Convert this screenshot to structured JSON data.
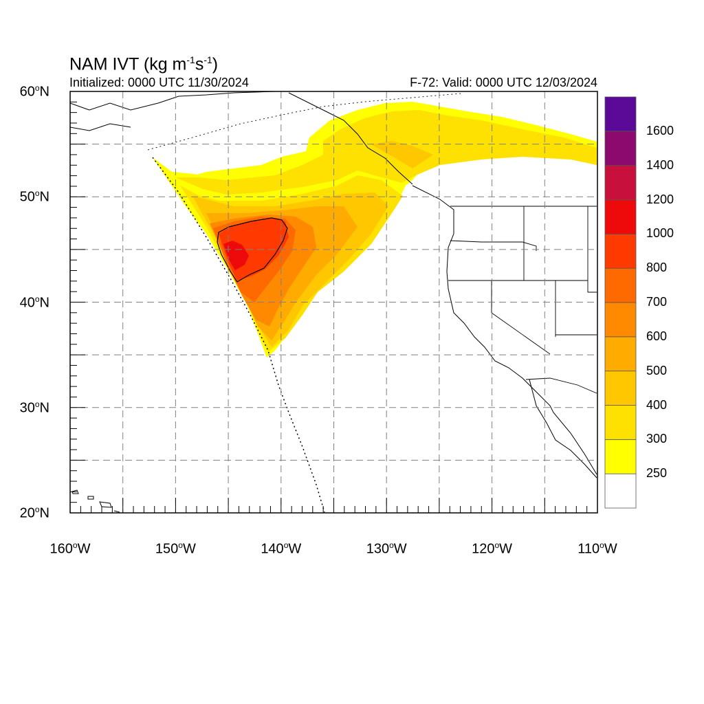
{
  "header": {
    "title_main": "NAM IVT (kg m",
    "title_exp1": "-1",
    "title_mid": "s",
    "title_exp2": "-1",
    "title_end": ")",
    "initialized": "Initialized: 0000 UTC 11/30/2024",
    "valid": "F-72: Valid: 0000 UTC 12/03/2024"
  },
  "axes": {
    "lat_labels": [
      {
        "num": "60",
        "hemi": "N"
      },
      {
        "num": "50",
        "hemi": "N"
      },
      {
        "num": "40",
        "hemi": "N"
      },
      {
        "num": "30",
        "hemi": "N"
      },
      {
        "num": "20",
        "hemi": "N"
      }
    ],
    "lon_labels": [
      {
        "num": "160",
        "hemi": "W"
      },
      {
        "num": "150",
        "hemi": "W"
      },
      {
        "num": "140",
        "hemi": "W"
      },
      {
        "num": "130",
        "hemi": "W"
      },
      {
        "num": "120",
        "hemi": "W"
      },
      {
        "num": "110",
        "hemi": "W"
      }
    ],
    "lat_range": [
      20,
      60
    ],
    "lon_range": [
      -160,
      -110
    ],
    "grid": "dashed every 5 degrees"
  },
  "colorbar": {
    "labels": [
      "1600",
      "1400",
      "1200",
      "1000",
      "800",
      "700",
      "600",
      "500",
      "400",
      "300",
      "250"
    ],
    "colors": [
      "#ffffff",
      "#ffff00",
      "#ffe100",
      "#ffc700",
      "#ffab00",
      "#ff8a00",
      "#ff6a00",
      "#ff3a00",
      "#ee0a0a",
      "#c8103c",
      "#8c0a6e",
      "#5a0a96"
    ]
  },
  "chart_data": {
    "type": "heatmap",
    "variable": "IVT",
    "units": "kg m-1 s-1",
    "levels": [
      250,
      300,
      400,
      500,
      600,
      700,
      800,
      1000,
      1200,
      1400,
      1600
    ],
    "xlim": [
      -160,
      -110
    ],
    "ylim": [
      20,
      60
    ],
    "features": [
      {
        "region": "core maximum",
        "center_lon": -143.5,
        "center_lat": 45.5,
        "level": 1000
      },
      {
        "region": "plume axis toward coast",
        "from_lon": -145,
        "from_lat": 43,
        "to_lon": -128,
        "to_lat": 54,
        "level": 500
      },
      {
        "region": "plume extension over Canada",
        "from_lon": -128,
        "from_lat": 56,
        "to_lon": -110,
        "to_lat": 54,
        "level": 300
      }
    ]
  }
}
